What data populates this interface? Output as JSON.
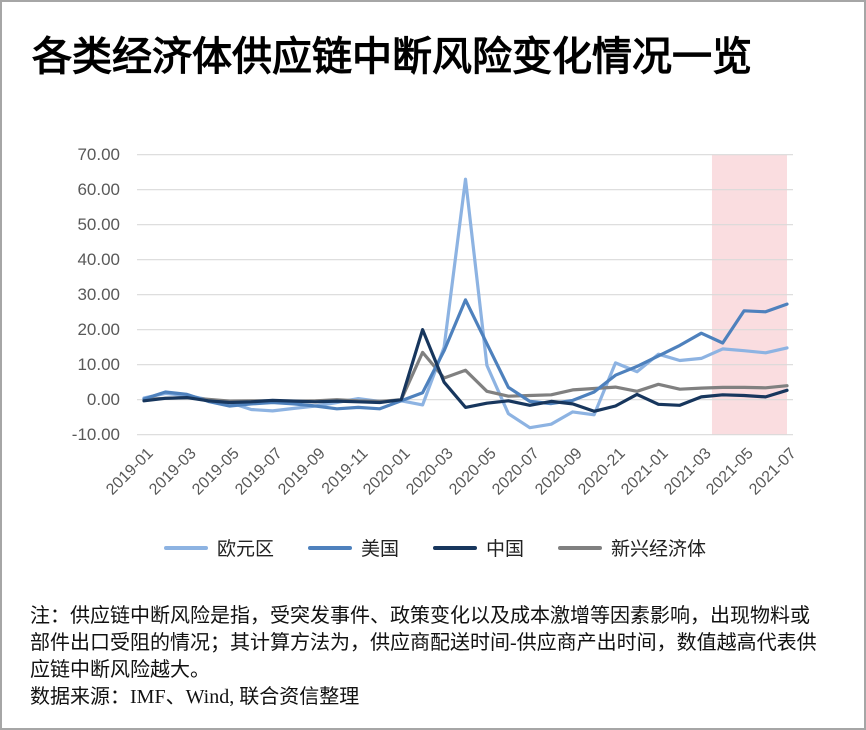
{
  "title": "各类经济体供应链中断风险变化情况一览",
  "notes": [
    "注：供应链中断风险是指，受突发事件、政策变化以及成本激增等因素影响，出现物料或",
    "部件出口受阻的情况；其计算方法为，供应商配送时间-供应商产出时间，数值越高代表供",
    "应链中断风险越大。",
    "数据来源：IMF、Wind, 联合资信整理"
  ],
  "colors": {
    "gridline": "#d9d9d9",
    "axis_text": "#595959",
    "page_border": "#a6a6a6",
    "highlight_band": "#fadde0"
  },
  "chart_data": {
    "type": "line",
    "title": "各类经济体供应链中断风险变化情况一览",
    "xlabel": "",
    "ylabel": "",
    "ylim": [
      -10,
      70
    ],
    "y_tick_labels": [
      "70.00",
      "60.00",
      "50.00",
      "40.00",
      "30.00",
      "20.00",
      "10.00",
      "0.00",
      "-10.00"
    ],
    "x_tick_labels": [
      "2019-01",
      "2019-03",
      "2019-05",
      "2019-07",
      "2019-09",
      "2019-11",
      "2020-01",
      "2020-03",
      "2020-05",
      "2020-07",
      "2020-09",
      "2020-21",
      "2021-01",
      "2021-03",
      "2021-05",
      "2021-07"
    ],
    "grid": "horizontal",
    "legend_position": "bottom",
    "highlight_band": {
      "from_index": 26.5,
      "to_index": 30,
      "color": "#fadde0",
      "meaning": "recent months (≈2021-05 to 2021-07) highlighted"
    },
    "categories": [
      "2019-01",
      "2019-02",
      "2019-03",
      "2019-04",
      "2019-05",
      "2019-06",
      "2019-07",
      "2019-08",
      "2019-09",
      "2019-10",
      "2019-11",
      "2019-12",
      "2020-01",
      "2020-02",
      "2020-03",
      "2020-04",
      "2020-05",
      "2020-06",
      "2020-07",
      "2020-08",
      "2020-09",
      "2020-10",
      "2020-11",
      "2020-12",
      "2021-01",
      "2021-02",
      "2021-03",
      "2021-04",
      "2021-05",
      "2021-06",
      "2021-07"
    ],
    "series": [
      {
        "name": "欧元区",
        "color": "#8db3e2",
        "values": [
          0.5,
          1.8,
          1.2,
          0.0,
          -0.8,
          -2.8,
          -3.2,
          -2.5,
          -1.8,
          -0.8,
          0.3,
          -0.5,
          -0.3,
          -1.5,
          15.0,
          63.0,
          9.8,
          -4.0,
          -8.0,
          -7.0,
          -3.5,
          -4.3,
          10.5,
          8.0,
          13.0,
          11.2,
          11.8,
          14.5,
          14.0,
          13.4,
          14.8
        ]
      },
      {
        "name": "美国",
        "color": "#4e81bd",
        "values": [
          0.2,
          2.2,
          1.5,
          -0.5,
          -1.8,
          -1.2,
          -0.8,
          -1.2,
          -1.8,
          -2.6,
          -2.2,
          -2.6,
          -0.3,
          2.0,
          14.0,
          28.5,
          16.0,
          3.5,
          -0.5,
          -1.1,
          -0.2,
          2.2,
          7.0,
          9.5,
          12.5,
          15.5,
          19.0,
          16.2,
          25.4,
          25.1,
          27.3
        ]
      },
      {
        "name": "中国",
        "color": "#17365d",
        "values": [
          -0.3,
          0.4,
          0.6,
          -0.3,
          -0.8,
          -0.6,
          -0.2,
          -0.4,
          -0.6,
          -0.4,
          -0.6,
          -0.8,
          0.0,
          20.0,
          5.0,
          -2.2,
          -1.0,
          -0.3,
          -1.6,
          -0.5,
          -1.2,
          -3.3,
          -1.8,
          1.5,
          -1.3,
          -1.6,
          0.8,
          1.4,
          1.2,
          0.8,
          2.7
        ]
      },
      {
        "name": "新兴经济体",
        "color": "#808080",
        "values": [
          0.1,
          0.4,
          0.6,
          0.1,
          -0.4,
          -0.3,
          -0.3,
          -0.5,
          -0.3,
          0.0,
          -0.3,
          -0.5,
          0.0,
          13.5,
          6.2,
          8.4,
          2.4,
          1.0,
          1.2,
          1.4,
          2.8,
          3.2,
          3.6,
          2.4,
          4.4,
          3.0,
          3.3,
          3.5,
          3.5,
          3.4,
          4.0
        ]
      }
    ]
  }
}
